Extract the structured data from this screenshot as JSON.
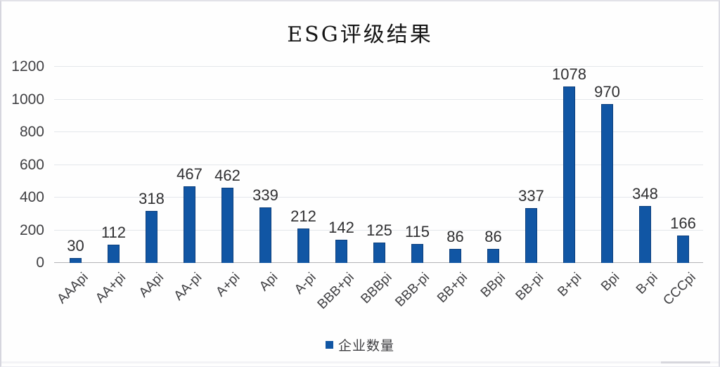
{
  "title": "ESG评级结果",
  "legend": {
    "label": "企业数量"
  },
  "colors": {
    "bar": "#1156a4",
    "bar_border": "#0c3f7d",
    "grid": "#e4e7eb",
    "axis_line": "#b3b3b6",
    "text": "#3f3f42"
  },
  "y_axis": {
    "ticks": [
      0,
      200,
      400,
      600,
      800,
      1000,
      1200
    ],
    "max": 1200
  },
  "chart_data": {
    "type": "bar",
    "title": "ESG评级结果",
    "series_name": "企业数量",
    "categories": [
      "AAApi",
      "AA+pi",
      "AApi",
      "AA-pi",
      "A+pi",
      "Api",
      "A-pi",
      "BBB+pi",
      "BBBpi",
      "BBB-pi",
      "BB+pi",
      "BBpi",
      "BB-pi",
      "B+pi",
      "Bpi",
      "B-pi",
      "CCCpi"
    ],
    "values": [
      30,
      112,
      318,
      467,
      462,
      339,
      212,
      142,
      125,
      115,
      86,
      86,
      337,
      1078,
      970,
      348,
      166
    ],
    "xlabel": "",
    "ylabel": "",
    "ylim": [
      0,
      1200
    ],
    "grid": true,
    "data_labels": true,
    "legend_position": "bottom"
  }
}
